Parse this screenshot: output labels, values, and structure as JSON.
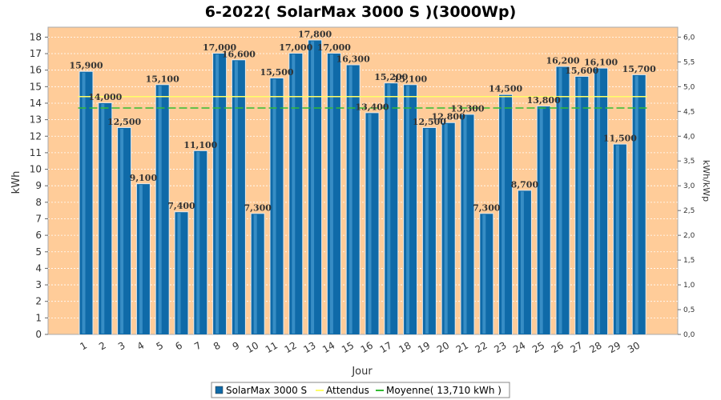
{
  "chart_data": {
    "type": "bar",
    "title": "6-2022( SolarMax 3000 S )(3000Wp)",
    "xlabel": "Jour",
    "ylabel": "kWh",
    "ylabel_right": "kWh/kWp",
    "ylim": [
      0,
      18.6
    ],
    "y_ticks": [
      0,
      1,
      2,
      3,
      4,
      5,
      6,
      7,
      8,
      9,
      10,
      11,
      12,
      13,
      14,
      15,
      16,
      17,
      18
    ],
    "y2lim": [
      0,
      6.2
    ],
    "y2_ticks": [
      "0,0",
      "0,5",
      "1,0",
      "1,5",
      "2,0",
      "2,5",
      "3,0",
      "3,5",
      "4,0",
      "4,5",
      "5,0",
      "5,5",
      "6,0"
    ],
    "categories": [
      "1",
      "2",
      "3",
      "4",
      "5",
      "6",
      "7",
      "8",
      "9",
      "10",
      "11",
      "12",
      "13",
      "14",
      "15",
      "16",
      "17",
      "18",
      "19",
      "20",
      "21",
      "22",
      "23",
      "24",
      "25",
      "26",
      "27",
      "28",
      "29",
      "30"
    ],
    "series": [
      {
        "name": "SolarMax 3000 S",
        "values": [
          15.9,
          14.0,
          12.5,
          9.1,
          15.1,
          7.4,
          11.1,
          17.0,
          16.6,
          7.3,
          15.5,
          17.0,
          17.8,
          17.0,
          16.3,
          13.4,
          15.2,
          15.1,
          12.5,
          12.8,
          13.3,
          7.3,
          14.5,
          8.7,
          13.8,
          16.2,
          15.6,
          16.1,
          11.5,
          15.7
        ],
        "labels": [
          "15,900",
          "14,000",
          "12,500",
          "9,100",
          "15,100",
          "7,400",
          "11,100",
          "17,000",
          "16,600",
          "7,300",
          "15,500",
          "17,000",
          "17,800",
          "17,000",
          "16,300",
          "13,400",
          "15,200",
          "15,100",
          "12,500",
          "12,800",
          "13,300",
          "7,300",
          "14,500",
          "8,700",
          "13,800",
          "16,200",
          "15,600",
          "16,100",
          "11,500",
          "15,700"
        ],
        "color": "#0f6aa8"
      }
    ],
    "expected_value": 14.4,
    "average_value": 13.71,
    "legend": {
      "placement": "bottom",
      "items": [
        {
          "label": "SolarMax 3000 S",
          "color": "#0f6aa8"
        },
        {
          "label": "Attendus",
          "color": "#ffff66"
        },
        {
          "label": "Moyenne( 13,710 kWh )",
          "color": "#33bb33"
        }
      ]
    },
    "grid": true,
    "colors": {
      "plot_background": "#ffcc99",
      "bar": "#0f6aa8",
      "expected_line": "#ffff66",
      "average_line": "#33bb33"
    }
  }
}
